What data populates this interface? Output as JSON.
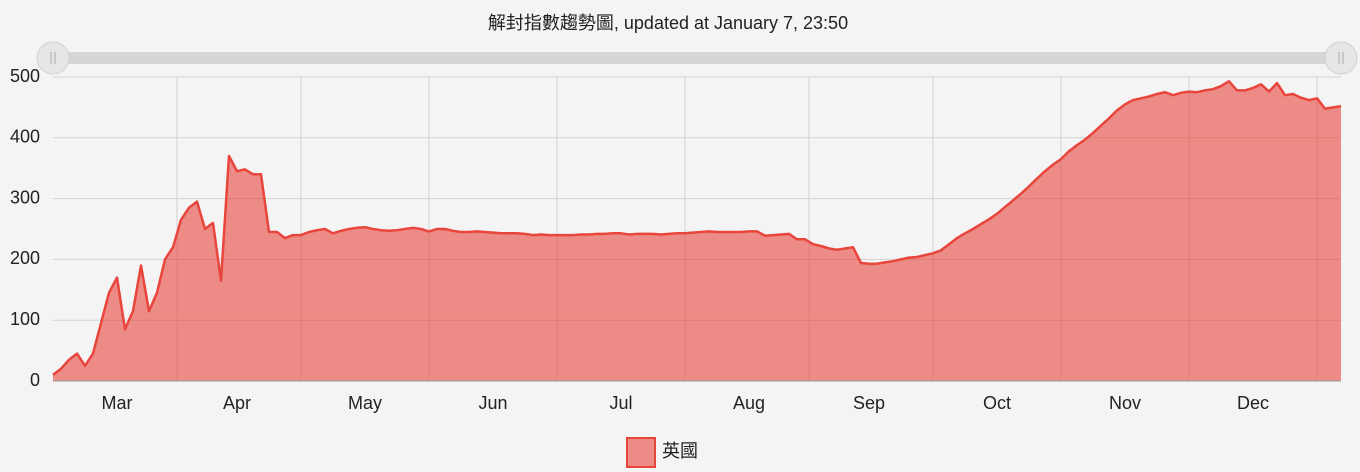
{
  "chart_data": {
    "type": "area",
    "title": "解封指數趨勢圖, updated at January 7, 23:50",
    "categories": [
      null,
      null,
      null,
      null,
      null,
      null,
      null,
      null,
      "Mar",
      null,
      null,
      null,
      null,
      null,
      null,
      null,
      null,
      null,
      null,
      null,
      null,
      null,
      null,
      "Apr",
      null,
      null,
      null,
      null,
      null,
      null,
      null,
      null,
      null,
      null,
      null,
      null,
      null,
      null,
      null,
      "May",
      null,
      null,
      null,
      null,
      null,
      null,
      null,
      null,
      null,
      null,
      null,
      null,
      null,
      null,
      null,
      "Jun",
      null,
      null,
      null,
      null,
      null,
      null,
      null,
      null,
      null,
      null,
      null,
      null,
      null,
      null,
      null,
      "Jul",
      null,
      null,
      null,
      null,
      null,
      null,
      null,
      null,
      null,
      null,
      null,
      null,
      null,
      null,
      null,
      "Aug",
      null,
      null,
      null,
      null,
      null,
      null,
      null,
      null,
      null,
      null,
      null,
      null,
      null,
      null,
      "Sep",
      null,
      null,
      null,
      null,
      null,
      null,
      null,
      null,
      null,
      null,
      null,
      null,
      null,
      null,
      null,
      "Oct",
      null,
      null,
      null,
      null,
      null,
      null,
      null,
      null,
      null,
      null,
      null,
      null,
      null,
      null,
      null,
      "Nov",
      null,
      null,
      null,
      null,
      null,
      null,
      null,
      null,
      null,
      null,
      null,
      null,
      null,
      null,
      null,
      "Dec",
      null,
      null,
      null,
      null,
      null,
      null,
      null,
      null,
      null,
      null,
      null
    ],
    "series": [
      {
        "name": "英國",
        "color": "#e8453c",
        "values": [
          10,
          20,
          35,
          45,
          25,
          45,
          95,
          145,
          170,
          85,
          115,
          190,
          115,
          145,
          200,
          220,
          265,
          285,
          295,
          250,
          260,
          165,
          370,
          345,
          348,
          340,
          340,
          245,
          245,
          235,
          240,
          240,
          245,
          248,
          250,
          243,
          247,
          250,
          252,
          253,
          250,
          248,
          247,
          248,
          250,
          252,
          250,
          246,
          250,
          250,
          247,
          245,
          245,
          246,
          245,
          244,
          243,
          243,
          243,
          242,
          240,
          241,
          240,
          240,
          240,
          240,
          241,
          241,
          242,
          242,
          243,
          243,
          241,
          242,
          242,
          242,
          241,
          242,
          243,
          243,
          244,
          245,
          246,
          245,
          245,
          245,
          245,
          246,
          246,
          239,
          240,
          241,
          242,
          233,
          233,
          225,
          222,
          218,
          216,
          218,
          220,
          194,
          193,
          193,
          195,
          197,
          200,
          203,
          204,
          207,
          210,
          215,
          225,
          235,
          243,
          250,
          258,
          266,
          275,
          286,
          297,
          308,
          320,
          333,
          345,
          356,
          365,
          378,
          388,
          397,
          408,
          420,
          432,
          445,
          455,
          462,
          465,
          468,
          472,
          475,
          470,
          474,
          476,
          475,
          478,
          480,
          485,
          493,
          478,
          478,
          482,
          488,
          476,
          490,
          470,
          472,
          466,
          462,
          465,
          448,
          450,
          452
        ]
      }
    ],
    "ylim": [
      0,
      500
    ],
    "yticks": [
      0,
      100,
      200,
      300,
      400,
      500
    ],
    "grid": true
  }
}
